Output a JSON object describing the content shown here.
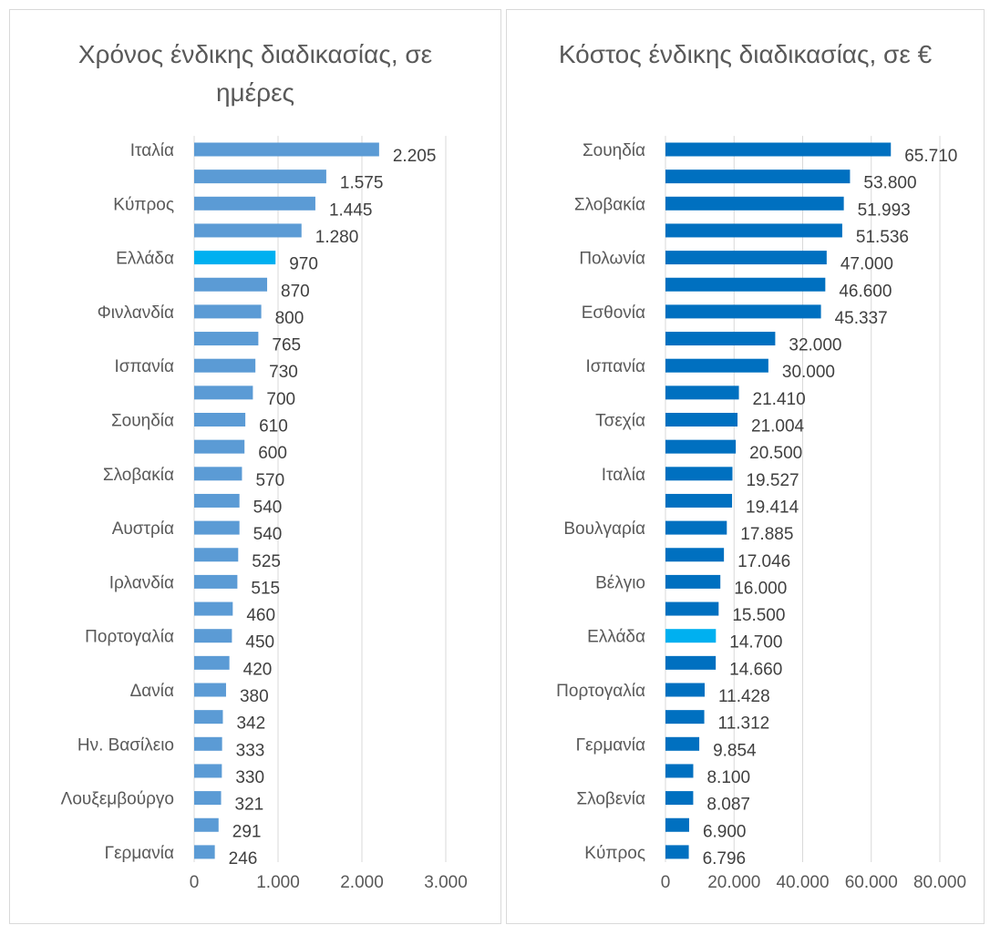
{
  "chart_data": [
    {
      "type": "bar",
      "orientation": "horizontal",
      "title": "Χρόνος ένδικης διαδικασίας, σε ημέρες",
      "xlim": [
        0,
        3000
      ],
      "ticks": [
        0,
        1000,
        2000,
        3000
      ],
      "tick_labels": [
        "0",
        "1.000",
        "2.000",
        "3.000"
      ],
      "grid": true,
      "color": "#5b9bd5",
      "highlight_color": "#00b0f0",
      "highlight_index": 4,
      "categories": [
        "Ιταλία",
        "",
        "Κύπρος",
        "",
        "Ελλάδα",
        "",
        "Φινλανδία",
        "",
        "Ισπανία",
        "",
        "Σουηδία",
        "",
        "Σλοβακία",
        "",
        "Αυστρία",
        "",
        "Ιρλανδία",
        "",
        "Πορτογαλία",
        "",
        "Δανία",
        "",
        "Ην. Βασίλειο",
        "",
        "Λουξεμβούργο",
        "",
        "Γερμανία"
      ],
      "values": [
        2205,
        1575,
        1445,
        1280,
        970,
        870,
        800,
        765,
        730,
        700,
        610,
        600,
        570,
        540,
        540,
        525,
        515,
        460,
        450,
        420,
        380,
        342,
        333,
        330,
        321,
        291,
        246
      ],
      "value_labels": [
        "2.205",
        "1.575",
        "1.445",
        "1.280",
        "970",
        "870",
        "800",
        "765",
        "730",
        "700",
        "610",
        "600",
        "570",
        "540",
        "540",
        "525",
        "515",
        "460",
        "450",
        "420",
        "380",
        "342",
        "333",
        "330",
        "321",
        "291",
        "246"
      ]
    },
    {
      "type": "bar",
      "orientation": "horizontal",
      "title": "Κόστος ένδικης διαδικασίας, σε €",
      "xlim": [
        0,
        80000
      ],
      "ticks": [
        0,
        20000,
        40000,
        60000,
        80000
      ],
      "tick_labels": [
        "0",
        "20.000",
        "40.000",
        "60.000",
        "80.000"
      ],
      "grid": true,
      "color": "#0070c0",
      "highlight_color": "#00b0f0",
      "highlight_index": 18,
      "categories": [
        "Σουηδία",
        "",
        "Σλοβακία",
        "",
        "Πολωνία",
        "",
        "Εσθονία",
        "",
        "Ισπανία",
        "",
        "Τσεχία",
        "",
        "Ιταλία",
        "",
        "Βουλγαρία",
        "",
        "Βέλγιο",
        "",
        "Ελλάδα",
        "",
        "Πορτογαλία",
        "",
        "Γερμανία",
        "",
        "Σλοβενία",
        "",
        "Κύπρος"
      ],
      "values": [
        65710,
        53800,
        51993,
        51536,
        47000,
        46600,
        45337,
        32000,
        30000,
        21410,
        21004,
        20500,
        19527,
        19414,
        17885,
        17046,
        16000,
        15500,
        14700,
        14660,
        11428,
        11312,
        9854,
        8100,
        8087,
        6900,
        6796
      ],
      "value_labels": [
        "65.710",
        "53.800",
        "51.993",
        "51.536",
        "47.000",
        "46.600",
        "45.337",
        "32.000",
        "30.000",
        "21.410",
        "21.004",
        "20.500",
        "19.527",
        "19.414",
        "17.885",
        "17.046",
        "16.000",
        "15.500",
        "14.700",
        "14.660",
        "11.428",
        "11.312",
        "9.854",
        "8.100",
        "8.087",
        "6.900",
        "6.796"
      ]
    }
  ]
}
